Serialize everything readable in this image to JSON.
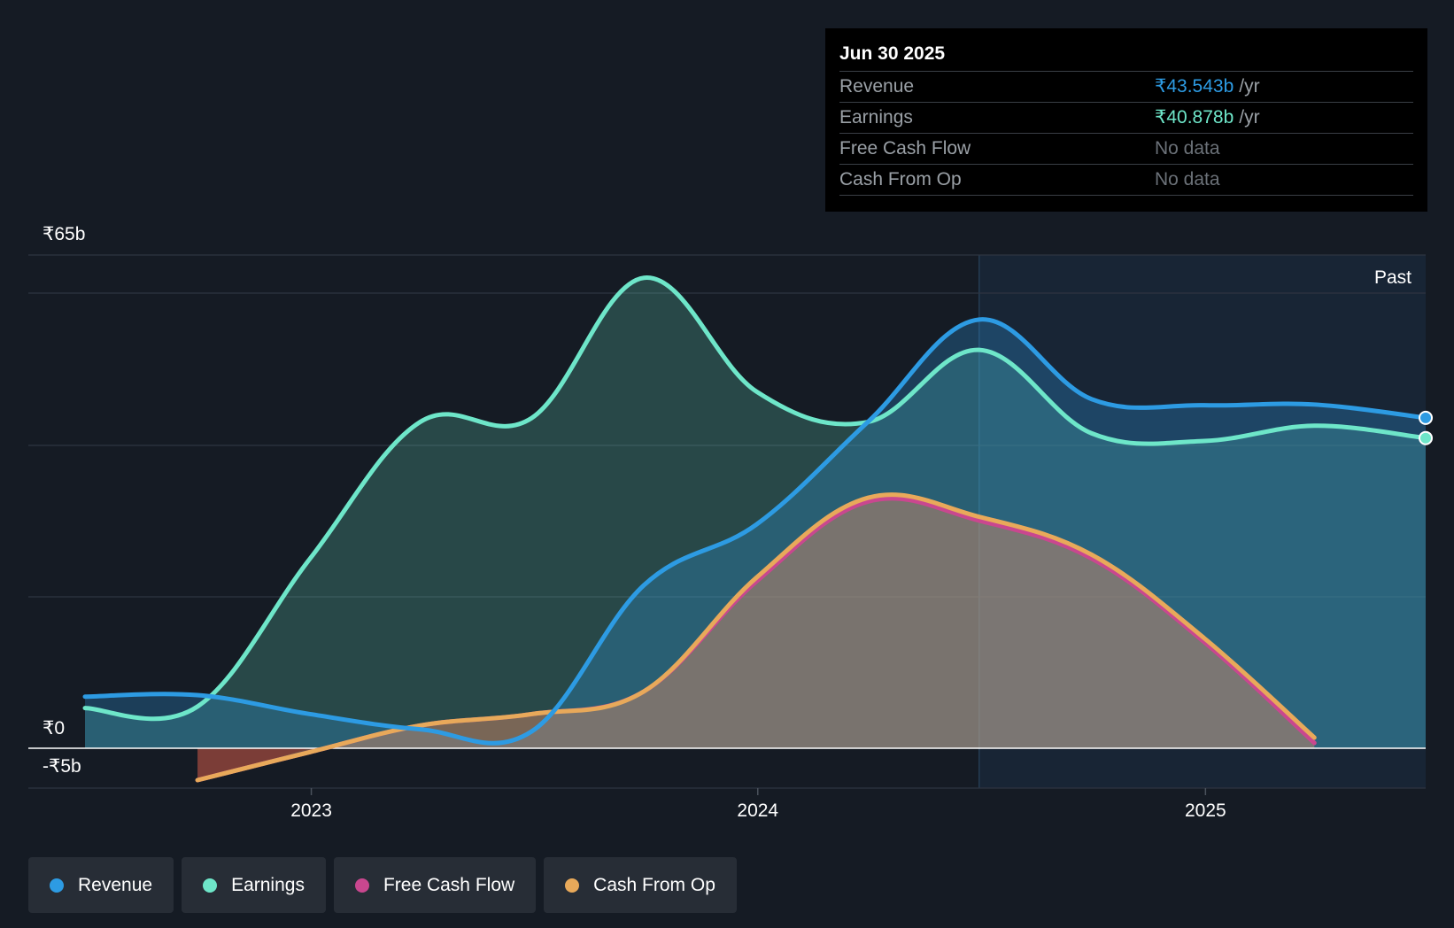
{
  "tooltip": {
    "date": "Jun 30 2025",
    "rows": [
      {
        "label": "Revenue",
        "value": "₹43.543b",
        "unit": "/yr",
        "color": "#2d9be3"
      },
      {
        "label": "Earnings",
        "value": "₹40.878b",
        "unit": "/yr",
        "color": "#6ee6c9"
      },
      {
        "label": "Free Cash Flow",
        "value": "No data",
        "unit": ""
      },
      {
        "label": "Cash From Op",
        "value": "No data",
        "unit": ""
      }
    ]
  },
  "chart_data": {
    "type": "area",
    "y_unit": "₹ billions",
    "ylim": [
      -5,
      65
    ],
    "y_tick_labels": [
      "₹65b",
      "₹0",
      "-₹5b"
    ],
    "x_tick_labels": [
      "2023",
      "2024",
      "2025"
    ],
    "x_range": [
      "2022-06-30",
      "2025-06-30"
    ],
    "past_label": "Past",
    "past_start": "2024-06-30",
    "grid": true,
    "legend_position": "bottom-left",
    "series": [
      {
        "name": "Revenue",
        "color": "#2d9be3",
        "x": [
          "2022-06-30",
          "2022-09-30",
          "2022-12-31",
          "2023-03-31",
          "2023-06-30",
          "2023-09-30",
          "2023-12-31",
          "2024-03-31",
          "2024-06-30",
          "2024-09-30",
          "2024-12-31",
          "2025-03-31",
          "2025-06-30"
        ],
        "values": [
          6.8,
          7.0,
          4.5,
          2.5,
          2.2,
          21.5,
          29.5,
          43.0,
          56.5,
          46.0,
          45.2,
          45.3,
          43.543
        ]
      },
      {
        "name": "Earnings",
        "color": "#6ee6c9",
        "x": [
          "2022-06-30",
          "2022-09-30",
          "2022-12-31",
          "2023-03-31",
          "2023-06-30",
          "2023-09-30",
          "2023-12-31",
          "2024-03-31",
          "2024-06-30",
          "2024-09-30",
          "2024-12-31",
          "2025-03-31",
          "2025-06-30"
        ],
        "values": [
          5.3,
          5.5,
          25.0,
          43.0,
          43.5,
          62.0,
          47.0,
          43.0,
          52.5,
          41.5,
          40.5,
          42.5,
          40.878
        ]
      },
      {
        "name": "Free Cash Flow",
        "color": "#c9478f",
        "x": [
          "2022-09-30",
          "2022-12-31",
          "2023-03-31",
          "2023-06-30",
          "2023-09-30",
          "2023-12-31",
          "2024-03-31",
          "2024-06-30",
          "2024-09-30",
          "2024-12-31",
          "2025-03-31"
        ],
        "values": [
          -4.2,
          -0.5,
          3.0,
          4.5,
          7.5,
          22.0,
          32.5,
          30.0,
          25.0,
          14.0,
          0.7
        ]
      },
      {
        "name": "Cash From Op",
        "color": "#e8a95a",
        "x": [
          "2022-09-30",
          "2022-12-31",
          "2023-03-31",
          "2023-06-30",
          "2023-09-30",
          "2023-12-31",
          "2024-03-31",
          "2024-06-30",
          "2024-09-30",
          "2024-12-31",
          "2025-03-31"
        ],
        "values": [
          -4.2,
          -0.5,
          3.0,
          4.5,
          7.5,
          22.5,
          33.0,
          30.5,
          25.5,
          14.5,
          1.4
        ]
      }
    ]
  },
  "legend": [
    {
      "label": "Revenue",
      "color": "#2d9be3"
    },
    {
      "label": "Earnings",
      "color": "#6ee6c9"
    },
    {
      "label": "Free Cash Flow",
      "color": "#c9478f"
    },
    {
      "label": "Cash From Op",
      "color": "#e8a95a"
    }
  ]
}
